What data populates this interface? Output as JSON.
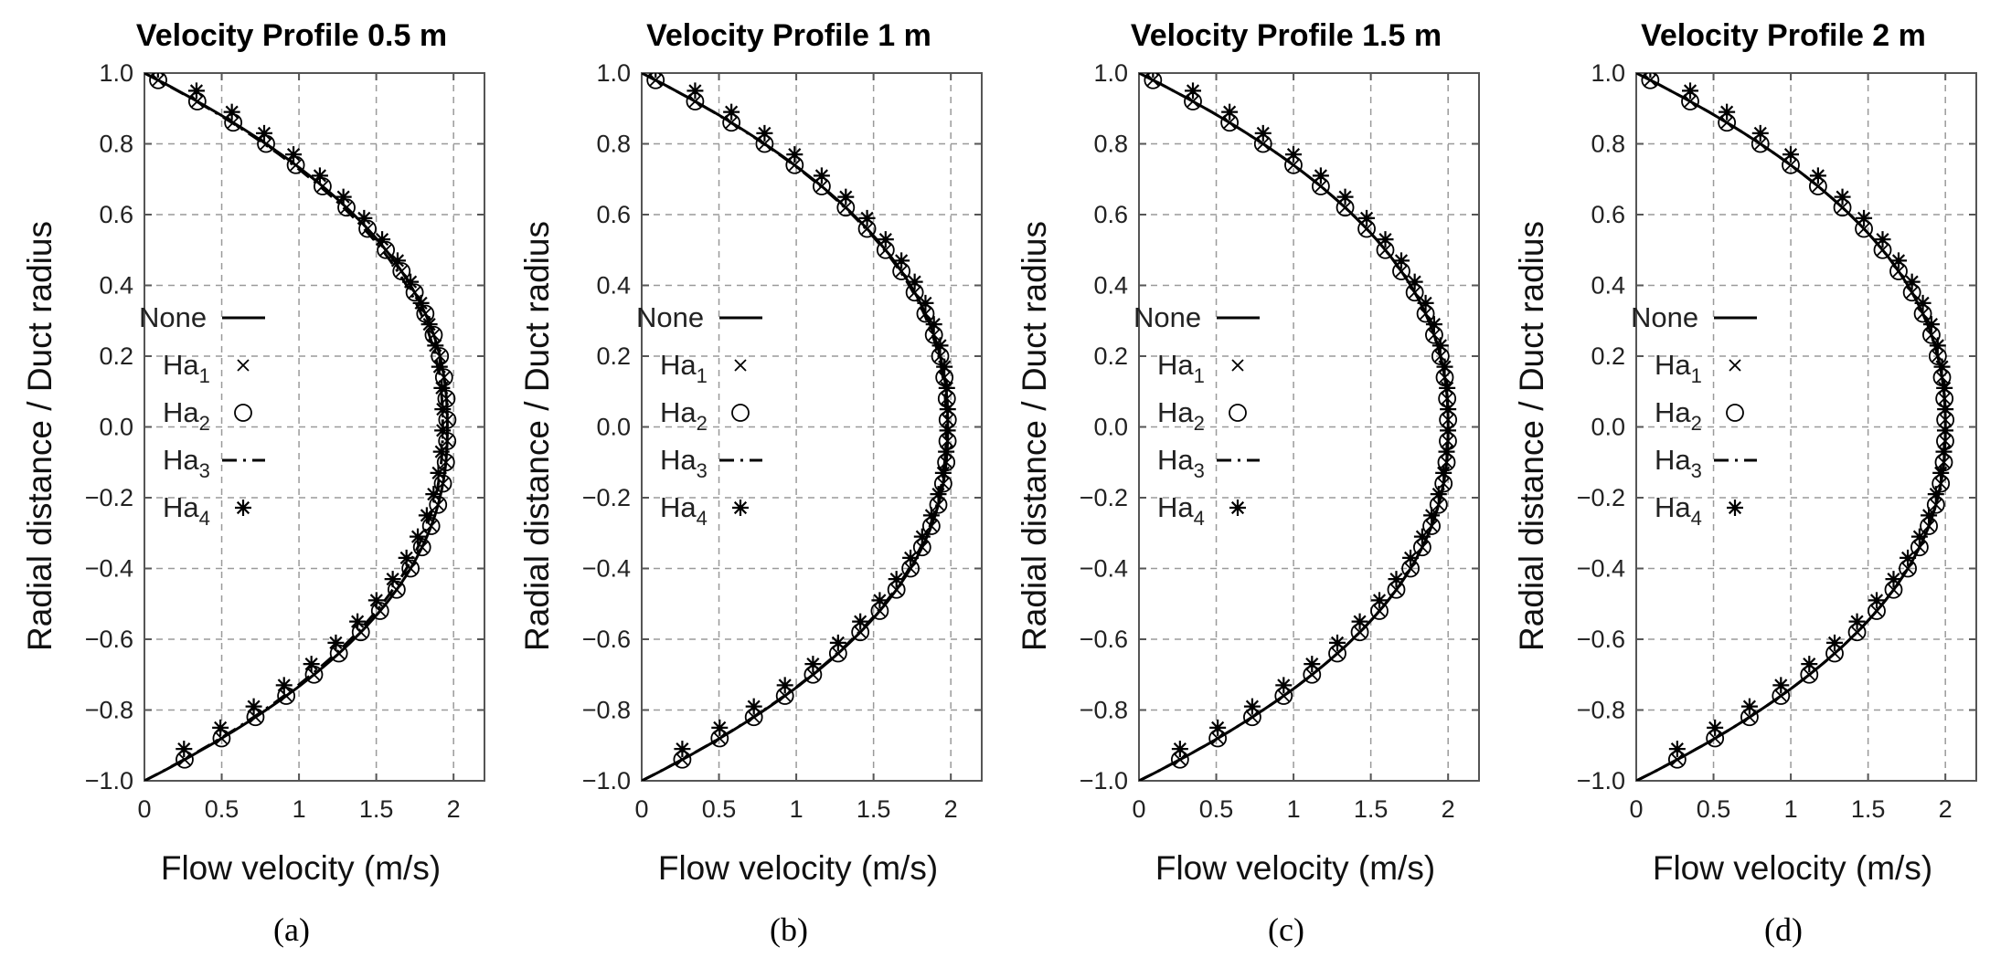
{
  "chart_data": [
    {
      "type": "line",
      "title": "Velocity Profile 0.5 m",
      "subtitle": "(a)",
      "panel_label": "a",
      "xlabel": "Flow velocity (m/s)",
      "ylabel": "Radial distance / Duct radius",
      "xlim": [
        0,
        2.2
      ],
      "ylim": [
        -1.0,
        1.0
      ],
      "xticks": [
        "0",
        "0.5",
        "1",
        "1.5",
        "2"
      ],
      "yticks": [
        "1.0",
        "0.8",
        "0.6",
        "0.4",
        "0.2",
        "0.0",
        "−0.2",
        "−0.4",
        "−0.6",
        "−0.8",
        "−1.0"
      ],
      "grid": true,
      "legend_position": "left-middle",
      "peak_velocity": 1.96,
      "series": [
        {
          "name": "None",
          "style": "solid-line",
          "peak": 1.96
        },
        {
          "name": "Ha",
          "sub": "1",
          "style": "cross-marker",
          "peak": 1.96
        },
        {
          "name": "Ha",
          "sub": "2",
          "style": "circle-marker",
          "peak": 1.96
        },
        {
          "name": "Ha",
          "sub": "3",
          "style": "dash-dot-line",
          "peak": 1.93
        },
        {
          "name": "Ha",
          "sub": "4",
          "style": "asterisk-marker",
          "peak": 1.93
        }
      ]
    },
    {
      "type": "line",
      "title": "Velocity Profile 1 m",
      "subtitle": "(b)",
      "panel_label": "b",
      "xlabel": "Flow velocity (m/s)",
      "ylabel": "Radial distance / Duct radius",
      "xlim": [
        0,
        2.2
      ],
      "ylim": [
        -1.0,
        1.0
      ],
      "xticks": [
        "0",
        "0.5",
        "1",
        "1.5",
        "2"
      ],
      "yticks": [
        "1.0",
        "0.8",
        "0.6",
        "0.4",
        "0.2",
        "0.0",
        "−0.2",
        "−0.4",
        "−0.6",
        "−0.8",
        "−1.0"
      ],
      "grid": true,
      "legend_position": "left-middle",
      "peak_velocity": 1.98,
      "series": [
        {
          "name": "None",
          "style": "solid-line",
          "peak": 1.98
        },
        {
          "name": "Ha",
          "sub": "1",
          "style": "cross-marker",
          "peak": 1.98
        },
        {
          "name": "Ha",
          "sub": "2",
          "style": "circle-marker",
          "peak": 1.98
        },
        {
          "name": "Ha",
          "sub": "3",
          "style": "dash-dot-line",
          "peak": 1.97
        },
        {
          "name": "Ha",
          "sub": "4",
          "style": "asterisk-marker",
          "peak": 1.98
        }
      ]
    },
    {
      "type": "line",
      "title": "Velocity Profile 1.5 m",
      "subtitle": "(c)",
      "panel_label": "c",
      "xlabel": "Flow velocity (m/s)",
      "ylabel": "Radial distance / Duct radius",
      "xlim": [
        0,
        2.2
      ],
      "ylim": [
        -1.0,
        1.0
      ],
      "xticks": [
        "0",
        "0.5",
        "1",
        "1.5",
        "2"
      ],
      "yticks": [
        "1.0",
        "0.8",
        "0.6",
        "0.4",
        "0.2",
        "0.0",
        "−0.2",
        "−0.4",
        "−0.6",
        "−0.8",
        "−1.0"
      ],
      "grid": true,
      "legend_position": "left-middle",
      "peak_velocity": 2.0,
      "series": [
        {
          "name": "None",
          "style": "solid-line",
          "peak": 2.0
        },
        {
          "name": "Ha",
          "sub": "1",
          "style": "cross-marker",
          "peak": 2.0
        },
        {
          "name": "Ha",
          "sub": "2",
          "style": "circle-marker",
          "peak": 2.0
        },
        {
          "name": "Ha",
          "sub": "3",
          "style": "dash-dot-line",
          "peak": 2.0
        },
        {
          "name": "Ha",
          "sub": "4",
          "style": "asterisk-marker",
          "peak": 2.0
        }
      ]
    },
    {
      "type": "line",
      "title": "Velocity Profile 2 m",
      "subtitle": "(d)",
      "panel_label": "d",
      "xlabel": "Flow velocity (m/s)",
      "ylabel": "Radial distance / Duct radius",
      "xlim": [
        0,
        2.2
      ],
      "ylim": [
        -1.0,
        1.0
      ],
      "xticks": [
        "0",
        "0.5",
        "1",
        "1.5",
        "2"
      ],
      "yticks": [
        "1.0",
        "0.8",
        "0.6",
        "0.4",
        "0.2",
        "0.0",
        "−0.2",
        "−0.4",
        "−0.6",
        "−0.8",
        "−1.0"
      ],
      "grid": true,
      "legend_position": "left-middle",
      "peak_velocity": 2.0,
      "series": [
        {
          "name": "None",
          "style": "solid-line",
          "peak": 2.0
        },
        {
          "name": "Ha",
          "sub": "1",
          "style": "cross-marker",
          "peak": 2.0
        },
        {
          "name": "Ha",
          "sub": "2",
          "style": "circle-marker",
          "peak": 2.0
        },
        {
          "name": "Ha",
          "sub": "3",
          "style": "dash-dot-line",
          "peak": 2.0
        },
        {
          "name": "Ha",
          "sub": "4",
          "style": "asterisk-marker",
          "peak": 2.0
        }
      ]
    }
  ],
  "colors": {
    "line": "#000000",
    "grid": "#9a9a9a",
    "frame": "#555555",
    "background": "#ffffff"
  }
}
